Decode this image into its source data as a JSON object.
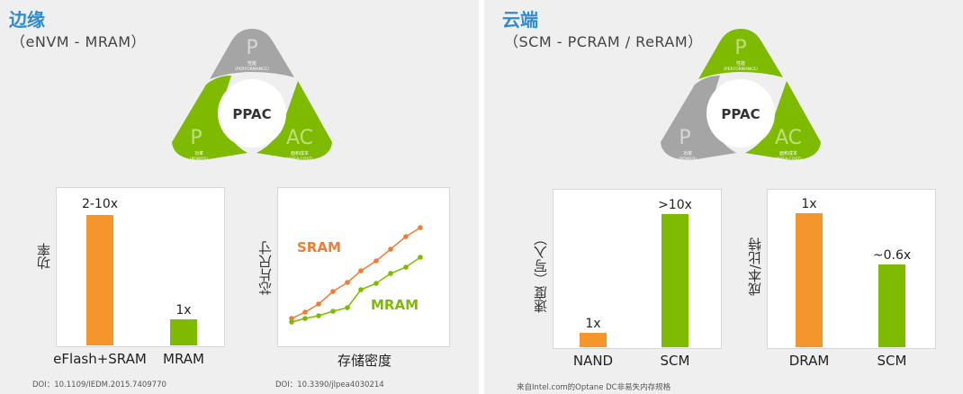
{
  "left": {
    "heading": "边缘",
    "subtitle": "（eNVM - MRAM）",
    "ppac": {
      "center": "PPAC",
      "top": {
        "letter": "P",
        "cn": "性能",
        "en": "(PERFORMANCE)"
      },
      "left": {
        "letter": "P",
        "cn": "功率",
        "en": "(POWER)"
      },
      "right": {
        "letter": "AC",
        "cn": "面积成本",
        "en": "(AREA-COST)"
      }
    },
    "power_chart": {
      "ylabel": "功率",
      "categories": [
        "eFlash+SRAM",
        "MRAM"
      ],
      "labels": [
        "2-10x",
        "1x"
      ]
    },
    "density_chart": {
      "ylabel": "芯片尺寸",
      "xlabel": "存储密度",
      "sram_label": "SRAM",
      "mram_label": "MRAM"
    },
    "doi1": "DOI：10.1109/IEDM.2015.7409770",
    "doi2": "DOI：10.3390/jlpea4030214"
  },
  "right": {
    "heading": "云端",
    "subtitle": "（SCM - PCRAM / ReRAM）",
    "ppac": {
      "center": "PPAC",
      "top": {
        "letter": "P",
        "cn": "性能",
        "en": "(PERFORMANCE)"
      },
      "left": {
        "letter": "P",
        "cn": "功率",
        "en": "(POWER)"
      },
      "right": {
        "letter": "AC",
        "cn": "面积成本",
        "en": "(AREA-COST)"
      }
    },
    "speed_chart": {
      "ylabel": "速度（写入）",
      "categories": [
        "NAND",
        "SCM"
      ],
      "labels": [
        "1x",
        ">10x"
      ]
    },
    "cost_chart": {
      "ylabel": "成本/比特",
      "categories": [
        "DRAM",
        "SCM"
      ],
      "labels": [
        "1x",
        "~0.6x"
      ]
    },
    "source": "来自Intel.com的Optane  DC非易失内存规格"
  },
  "colors": {
    "orange": "#f5962d",
    "green": "#7dba00",
    "gray": "#a5a5a5",
    "title": "#2f8bd0"
  },
  "chart_data": [
    {
      "type": "bar",
      "ylabel": "功率",
      "categories": [
        "eFlash+SRAM",
        "MRAM"
      ],
      "values": [
        10,
        1
      ]
    },
    {
      "type": "line",
      "ylabel": "芯片尺寸",
      "xlabel": "存储密度",
      "series": [
        {
          "name": "SRAM"
        },
        {
          "name": "MRAM"
        }
      ]
    },
    {
      "type": "bar",
      "ylabel": "速度（写入）",
      "categories": [
        "NAND",
        "SCM"
      ],
      "values": [
        1,
        10
      ]
    },
    {
      "type": "bar",
      "ylabel": "成本/比特",
      "categories": [
        "DRAM",
        "SCM"
      ],
      "values": [
        1,
        0.6
      ]
    }
  ]
}
